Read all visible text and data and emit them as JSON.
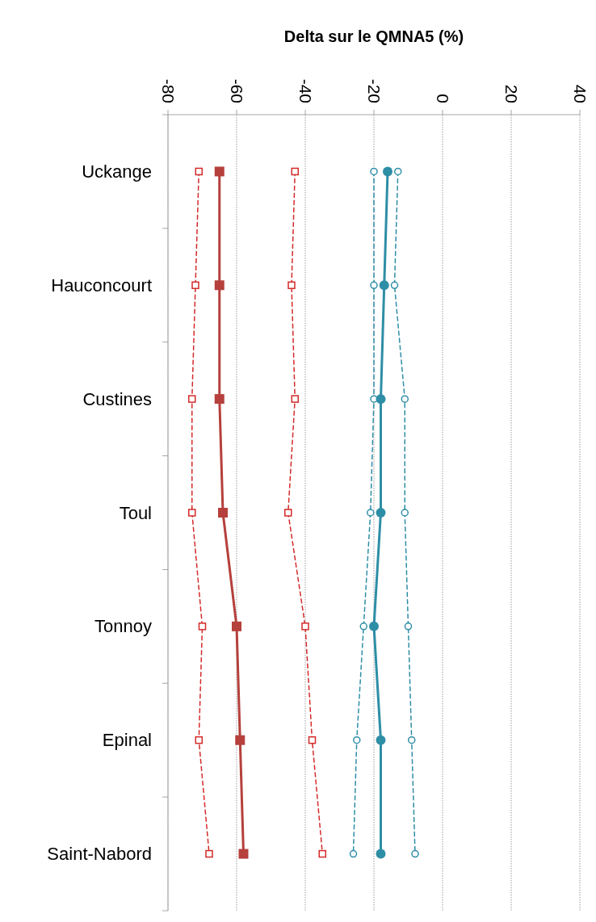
{
  "chart_data": {
    "type": "line",
    "orientation": "horizontal",
    "xlabel": "Delta sur le QMNA5 (%)",
    "categories": [
      "Uckange",
      "Hauconcourt",
      "Custines",
      "Toul",
      "Tonnoy",
      "Epinal",
      "Saint-Nabord"
    ],
    "xlim": [
      -80,
      40
    ],
    "xticks": [
      -80,
      -60,
      -40,
      -20,
      0,
      20,
      40
    ],
    "grid": "x",
    "series": [
      {
        "color": "#d42a2a",
        "marker": "square",
        "line_style": "dashed",
        "values": [
          -71,
          -72,
          -73,
          -73,
          -70,
          -71,
          -68
        ]
      },
      {
        "color": "#b5403c",
        "marker": "square",
        "line_style": "solid",
        "values": [
          -65,
          -65,
          -65,
          -64,
          -60,
          -59,
          -58
        ]
      },
      {
        "color": "#d42a2a",
        "marker": "square",
        "line_style": "dashed",
        "values": [
          -43,
          -44,
          -43,
          -45,
          -40,
          -38,
          -35
        ]
      },
      {
        "color": "#2e8ea6",
        "marker": "circle",
        "line_style": "dashed",
        "values": [
          -20,
          -20,
          -20,
          -21,
          -23,
          -25,
          -26
        ]
      },
      {
        "color": "#2e8ea6",
        "marker": "circle",
        "line_style": "solid",
        "values": [
          -16,
          -17,
          -18,
          -18,
          -20,
          -18,
          -18
        ]
      },
      {
        "color": "#2e8ea6",
        "marker": "circle",
        "line_style": "dashed",
        "values": [
          -13,
          -14,
          -11,
          -11,
          -10,
          -9,
          -8
        ]
      }
    ]
  }
}
